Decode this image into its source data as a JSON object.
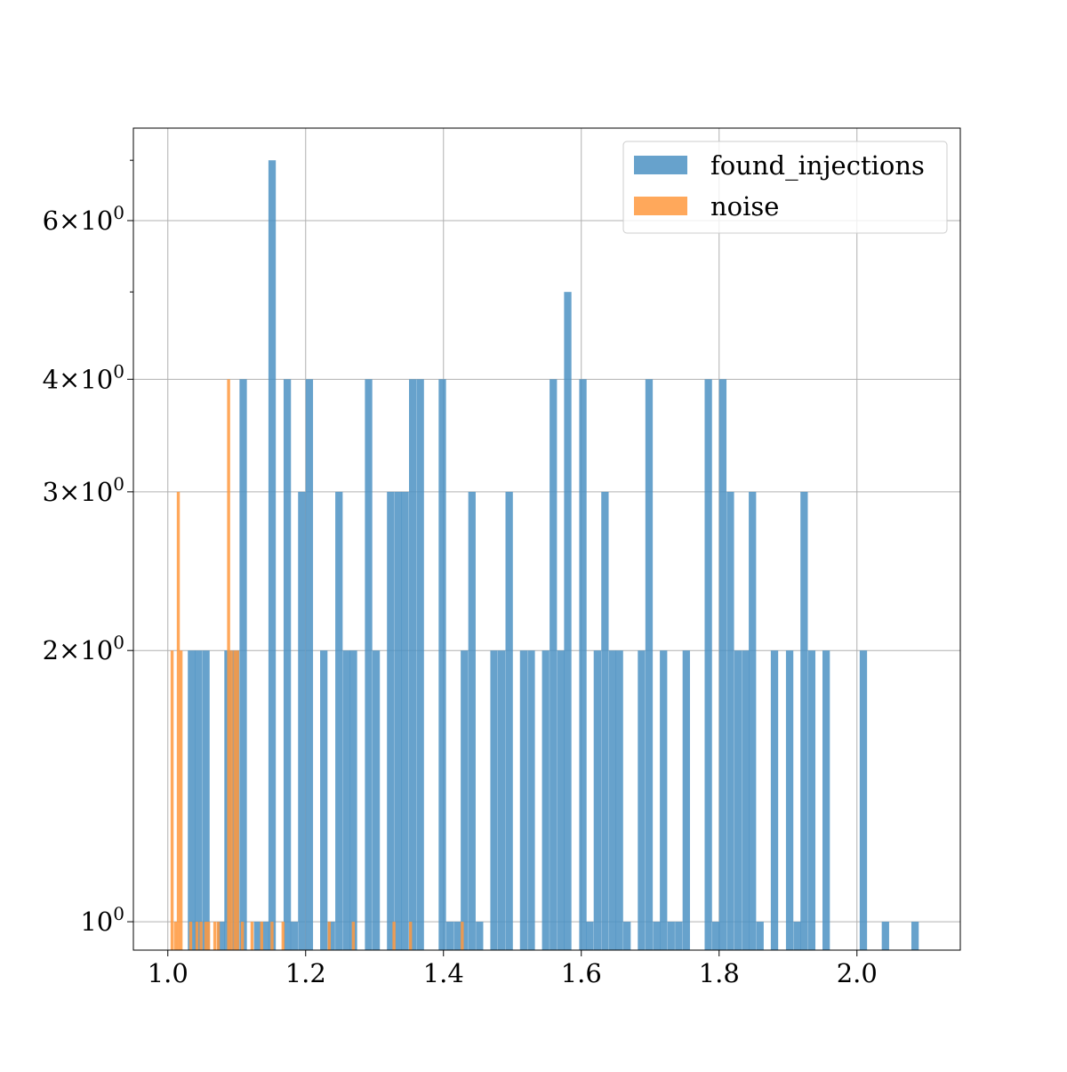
{
  "chart_data": {
    "type": "bar",
    "title": "",
    "xlabel": "",
    "ylabel": "",
    "xlim": [
      0.95,
      2.15
    ],
    "ylim": [
      0.93,
      7.6
    ],
    "yscale": "log",
    "grid": true,
    "legend_position": "top-right",
    "x_ticks": [
      {
        "value": 1.0,
        "label": "1.0"
      },
      {
        "value": 1.2,
        "label": "1.2"
      },
      {
        "value": 1.4,
        "label": "1.4"
      },
      {
        "value": 1.6,
        "label": "1.6"
      },
      {
        "value": 1.8,
        "label": "1.8"
      },
      {
        "value": 2.0,
        "label": "2.0"
      }
    ],
    "y_ticks": [
      {
        "value": 1,
        "base": "10",
        "exp": "0",
        "mant": ""
      },
      {
        "value": 2,
        "base": "10",
        "exp": "0",
        "mant": "2"
      },
      {
        "value": 3,
        "base": "10",
        "exp": "0",
        "mant": "3"
      },
      {
        "value": 4,
        "base": "10",
        "exp": "0",
        "mant": "4"
      },
      {
        "value": 6,
        "base": "10",
        "exp": "0",
        "mant": "6"
      }
    ],
    "y_minor_ticks": [
      5,
      7
    ],
    "series": [
      {
        "name": "found_injections",
        "color": "#4c92c3",
        "bin_width": 0.0107,
        "bars": [
          [
            1.029,
            2
          ],
          [
            1.039,
            2
          ],
          [
            1.05,
            2
          ],
          [
            1.072,
            1
          ],
          [
            1.082,
            2
          ],
          [
            1.093,
            2
          ],
          [
            1.104,
            4
          ],
          [
            1.125,
            1
          ],
          [
            1.136,
            1
          ],
          [
            1.146,
            7
          ],
          [
            1.168,
            4
          ],
          [
            1.178,
            1
          ],
          [
            1.189,
            3
          ],
          [
            1.2,
            4
          ],
          [
            1.221,
            2
          ],
          [
            1.232,
            1
          ],
          [
            1.243,
            3
          ],
          [
            1.254,
            2
          ],
          [
            1.264,
            2
          ],
          [
            1.286,
            4
          ],
          [
            1.297,
            2
          ],
          [
            1.318,
            3
          ],
          [
            1.329,
            3
          ],
          [
            1.339,
            3
          ],
          [
            1.35,
            4
          ],
          [
            1.361,
            4
          ],
          [
            1.393,
            4
          ],
          [
            1.404,
            1
          ],
          [
            1.415,
            1
          ],
          [
            1.425,
            2
          ],
          [
            1.436,
            3
          ],
          [
            1.447,
            1
          ],
          [
            1.468,
            2
          ],
          [
            1.479,
            2
          ],
          [
            1.49,
            3
          ],
          [
            1.511,
            2
          ],
          [
            1.522,
            2
          ],
          [
            1.543,
            2
          ],
          [
            1.554,
            4
          ],
          [
            1.565,
            2
          ],
          [
            1.575,
            5
          ],
          [
            1.597,
            4
          ],
          [
            1.607,
            1
          ],
          [
            1.618,
            2
          ],
          [
            1.629,
            3
          ],
          [
            1.64,
            2
          ],
          [
            1.65,
            2
          ],
          [
            1.661,
            1
          ],
          [
            1.682,
            2
          ],
          [
            1.693,
            4
          ],
          [
            1.704,
            1
          ],
          [
            1.714,
            2
          ],
          [
            1.725,
            1
          ],
          [
            1.736,
            1
          ],
          [
            1.747,
            2
          ],
          [
            1.779,
            4
          ],
          [
            1.79,
            1
          ],
          [
            1.8,
            4
          ],
          [
            1.811,
            3
          ],
          [
            1.822,
            2
          ],
          [
            1.833,
            2
          ],
          [
            1.843,
            3
          ],
          [
            1.854,
            1
          ],
          [
            1.875,
            2
          ],
          [
            1.897,
            2
          ],
          [
            1.908,
            1
          ],
          [
            1.918,
            3
          ],
          [
            1.929,
            2
          ],
          [
            1.95,
            2
          ],
          [
            2.004,
            2
          ],
          [
            2.036,
            1
          ],
          [
            2.079,
            1
          ]
        ]
      },
      {
        "name": "noise",
        "color": "#ff993e",
        "bin_width": 0.0044,
        "bars": [
          [
            1.004,
            2
          ],
          [
            1.009,
            1
          ],
          [
            1.013,
            3
          ],
          [
            1.017,
            2
          ],
          [
            1.031,
            1
          ],
          [
            1.04,
            1
          ],
          [
            1.046,
            1
          ],
          [
            1.053,
            1
          ],
          [
            1.057,
            1
          ],
          [
            1.066,
            1
          ],
          [
            1.071,
            1
          ],
          [
            1.086,
            4
          ],
          [
            1.09,
            2
          ],
          [
            1.095,
            2
          ],
          [
            1.099,
            2
          ],
          [
            1.106,
            1
          ],
          [
            1.12,
            1
          ],
          [
            1.134,
            1
          ],
          [
            1.149,
            1
          ],
          [
            1.165,
            1
          ],
          [
            1.232,
            1
          ],
          [
            1.267,
            1
          ],
          [
            1.326,
            1
          ],
          [
            1.35,
            1
          ],
          [
            1.425,
            1
          ]
        ]
      }
    ]
  }
}
